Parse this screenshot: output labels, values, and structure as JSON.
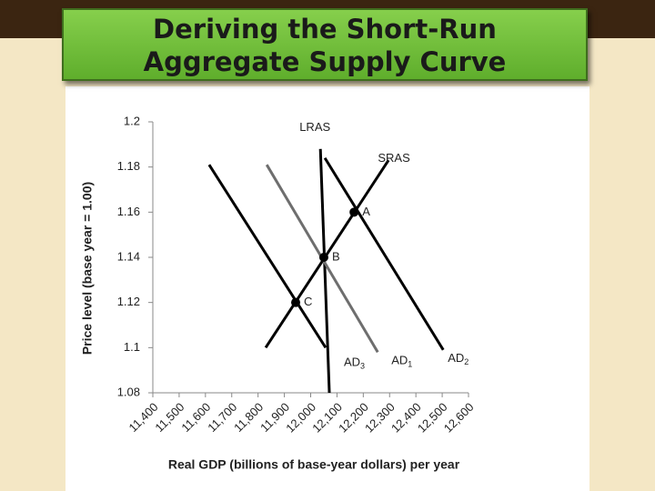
{
  "chart_data": {
    "type": "line",
    "title": [
      "Deriving the Short-Run",
      "Aggregate Supply Curve"
    ],
    "x_label": "Real GDP (billions of base-year dollars) per year",
    "y_label": "Price level (base year = 1.00)",
    "xlim": [
      11400,
      12600
    ],
    "ylim": [
      1.08,
      1.2
    ],
    "yticks": [
      1.08,
      1.1,
      1.12,
      1.14,
      1.16,
      1.18,
      1.2
    ],
    "xticks": [
      {
        "value": 11400,
        "label": "11,400"
      },
      {
        "value": 11500,
        "label": "11,500"
      },
      {
        "value": 11600,
        "label": "11,600"
      },
      {
        "value": 11700,
        "label": "11,700"
      },
      {
        "value": 11800,
        "label": "11,800"
      },
      {
        "value": 11900,
        "label": "11,900"
      },
      {
        "value": 12000,
        "label": "12,000"
      },
      {
        "value": 12100,
        "label": "12,100"
      },
      {
        "value": 12200,
        "label": "12,200"
      },
      {
        "value": 12300,
        "label": "12,300"
      },
      {
        "value": 12400,
        "label": "12,400"
      },
      {
        "value": 12500,
        "label": "12,500"
      },
      {
        "value": 12600,
        "label": "12,600"
      }
    ],
    "series": [
      {
        "name": "LRAS",
        "color": "#000000",
        "x": [
          12037,
          12071
        ],
        "values": [
          1.188,
          1.08
        ]
      },
      {
        "name": "SRAS",
        "color": "#000000",
        "x": [
          11829,
          12296
        ],
        "values": [
          1.1,
          1.183
        ]
      },
      {
        "name": "AD",
        "sub": "3",
        "color": "#000000",
        "x": [
          11614,
          12057
        ],
        "values": [
          1.181,
          1.1
        ]
      },
      {
        "name": "AD",
        "sub": "1",
        "color": "#6e6e6e",
        "x": [
          11833,
          12255
        ],
        "values": [
          1.181,
          1.098
        ]
      },
      {
        "name": "AD",
        "sub": "2",
        "color": "#000000",
        "x": [
          12054,
          12504
        ],
        "values": [
          1.184,
          1.099
        ]
      }
    ],
    "points": [
      {
        "label": "A",
        "x": 12165,
        "y": 1.16
      },
      {
        "label": "B",
        "x": 12050,
        "y": 1.14
      },
      {
        "label": "C",
        "x": 11943,
        "y": 1.12
      }
    ]
  }
}
